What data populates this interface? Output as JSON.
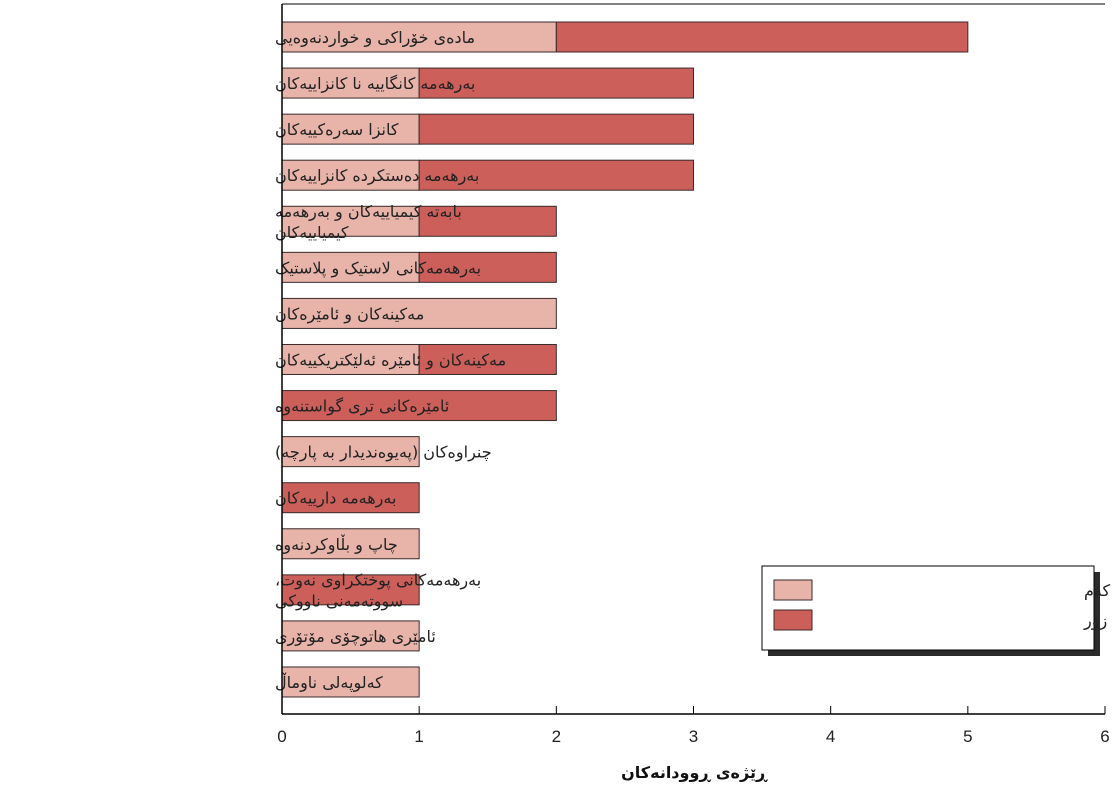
{
  "chart_data": {
    "type": "bar",
    "orientation": "horizontal",
    "stacked": true,
    "categories": [
      "مادەی خۆراکی و خواردنەوەیی",
      "بەرهەمە کانگاییە نا کانزاییەکان",
      "کانزا سەرەکییەکان",
      "بەرهەمە دەستکردە کانزاییەکان",
      "بابەتە کیمیاییەکان و بەرهەمە کیمیاییەکان",
      "بەرهەمەکانی لاستیک و پلاستیک",
      "مەکینەکان و ئامێرەکان",
      "مەکینەکان و ئامێرە ئەلێکتریکییەکان",
      "ئامێرەکانی تری گواستنەوە",
      "چنراوەکان (پەیوەندیدار بە پارچە)",
      "بەرهەمە دارییەکان",
      "چاپ و بڵاوکردنەوە",
      "بەرهەمەکانی پوختکراوی نەوت، سووتەمەنی ناووکی",
      "ئامێری هاتوچۆی مۆتۆری",
      "کەلوپەلی ناوماڵ"
    ],
    "category_lines": [
      [
        "مادەی خۆراکی و خواردنەوەیی"
      ],
      [
        "بەرهەمە کانگاییە نا کانزاییەکان"
      ],
      [
        "کانزا سەرەکییەکان"
      ],
      [
        "بەرهەمە دەستکردە کانزاییەکان"
      ],
      [
        "بابەتە کیمیاییەکان و بەرهەمە",
        "کیمیاییەکان"
      ],
      [
        "بەرهەمەکانی لاستیک و پلاستیک"
      ],
      [
        "مەکینەکان و ئامێرەکان"
      ],
      [
        "مەکینەکان و ئامێرە ئەلێکتریکییەکان"
      ],
      [
        "ئامێرەکانی تری گواستنەوە"
      ],
      [
        "چنراوەکان (پەیوەندیدار بە پارچە)"
      ],
      [
        "بەرهەمە دارییەکان"
      ],
      [
        "چاپ و بڵاوکردنەوە"
      ],
      [
        "بەرهەمەکانی پوختکراوی نەوت،",
        "سووتەمەنی ناووکی"
      ],
      [
        "ئامێری هاتوچۆی مۆتۆری"
      ],
      [
        "کەلوپەلی ناوماڵ"
      ]
    ],
    "series": [
      {
        "name": "وڵاتانی خاوەن گەشەی کەم",
        "color": "#e8b4aa",
        "values": [
          2,
          1,
          1,
          1,
          1,
          1,
          2,
          1,
          0,
          1,
          0,
          1,
          0,
          1,
          1
        ]
      },
      {
        "name": "وڵاتانی خاوەن گەشەی زۆر",
        "color": "#cd5f5a",
        "values": [
          3,
          2,
          2,
          2,
          1,
          1,
          0,
          1,
          2,
          0,
          1,
          0,
          1,
          0,
          0
        ]
      }
    ],
    "xlabel": "ڕێژەی ڕوودانەکان",
    "xlim": [
      0,
      6
    ],
    "xticks": [
      0,
      1,
      2,
      3,
      4,
      5,
      6
    ],
    "grid": false,
    "legend_position": "bottom-right"
  }
}
